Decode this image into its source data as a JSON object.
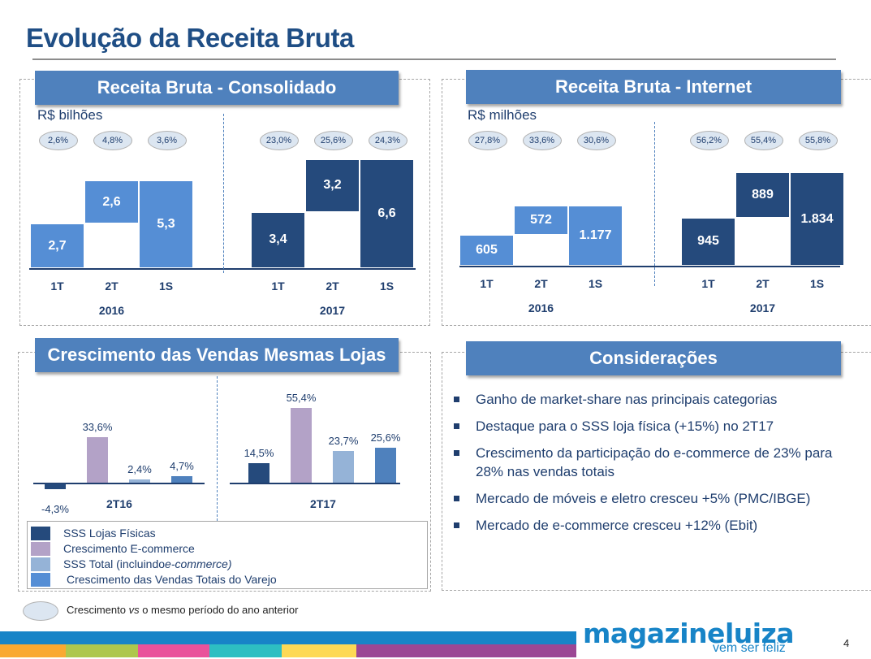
{
  "page": {
    "title": "Evolução da Receita Bruta",
    "page_number": "4",
    "brand": {
      "logo_text": "magazineluiza",
      "tagline": "vem ser feliz",
      "brand_color": "#1784c7"
    },
    "note": {
      "text_before": "Crescimento ",
      "text_italic": "vs",
      "text_after": " o mesmo período do ano anterior"
    }
  },
  "colors": {
    "bar_2016": "#558ed5",
    "bar_2017": "#254a7c",
    "sss_lojas": "#254a7c",
    "ecommerce": "#b3a2c7",
    "sss_total": "#95b3d7",
    "varejo": "#4f81bd",
    "banner": "#4f81bd",
    "stripes": [
      "#f9a932",
      "#aec74d",
      "#e9529b",
      "#2dbfc2",
      "#fdd955",
      "#9b4794"
    ]
  },
  "considerations": {
    "title": "Considerações",
    "bullets": [
      "Ganho de market-share nas principais categorias",
      "Destaque para o SSS loja física (+15%) no 2T17",
      "Crescimento da participação do e-commerce de 23% para 28% nas vendas totais",
      "Mercado de móveis e eletro cresceu +5% (PMC/IBGE)",
      "Mercado de e-commerce cresceu +12% (Ebit)"
    ]
  },
  "chart_data": [
    {
      "type": "bar",
      "title": "Receita Bruta - Consolidado",
      "unit_label": "R$ bilhões",
      "groups": [
        {
          "year": "2016",
          "categories": [
            "1T",
            "2T",
            "1S"
          ],
          "values": [
            2.7,
            2.6,
            5.3
          ],
          "labels": [
            "2,7",
            "2,6",
            "5,3"
          ],
          "growth": [
            "2,6%",
            "4,8%",
            "3,6%"
          ]
        },
        {
          "year": "2017",
          "categories": [
            "1T",
            "2T",
            "1S"
          ],
          "values": [
            3.4,
            3.2,
            6.6
          ],
          "labels": [
            "3,4",
            "3,2",
            "6,6"
          ],
          "growth": [
            "23,0%",
            "25,6%",
            "24,3%"
          ]
        }
      ],
      "style": "waterfall (2T stacked on top of 1T; 1S = total)"
    },
    {
      "type": "bar",
      "title": "Receita Bruta - Internet",
      "unit_label": "R$ milhões",
      "groups": [
        {
          "year": "2016",
          "categories": [
            "1T",
            "2T",
            "1S"
          ],
          "values": [
            605,
            572,
            1177
          ],
          "labels": [
            "605",
            "572",
            "1.177"
          ],
          "growth": [
            "27,8%",
            "33,6%",
            "30,6%"
          ]
        },
        {
          "year": "2017",
          "categories": [
            "1T",
            "2T",
            "1S"
          ],
          "values": [
            945,
            889,
            1834
          ],
          "labels": [
            "945",
            "889",
            "1.834"
          ],
          "growth": [
            "56,2%",
            "55,4%",
            "55,8%"
          ]
        }
      ],
      "style": "waterfall (2T stacked on top of 1T; 1S = total)"
    },
    {
      "type": "bar",
      "title": "Crescimento das Vendas Mesmas Lojas",
      "periods": [
        "2T16",
        "2T17"
      ],
      "series": [
        {
          "name": "SSS Lojas Físicas",
          "values": [
            -4.3,
            14.5
          ],
          "labels": [
            "-4,3%",
            "14,5%"
          ]
        },
        {
          "name": "Crescimento E-commerce",
          "values": [
            33.6,
            55.4
          ],
          "labels": [
            "33,6%",
            "55,4%"
          ]
        },
        {
          "name": "SSS Total (incluindo e-commerce)",
          "values": [
            2.4,
            23.7
          ],
          "labels": [
            "2,4%",
            "23,7%"
          ]
        },
        {
          "name": "Crescimento das Vendas Totais do Varejo",
          "values": [
            4.7,
            25.6
          ],
          "labels": [
            "4,7%",
            "25,6%"
          ]
        }
      ],
      "legend": {
        "position": "bottom",
        "items": [
          {
            "text": "SSS Lojas Físicas"
          },
          {
            "text": "Crescimento E-commerce"
          },
          {
            "text": "SSS Total (incluindo ",
            "italic": "e-commerce)"
          },
          {
            "text": "Crescimento das Vendas Totais do Varejo"
          }
        ]
      },
      "ylabel": "%"
    }
  ]
}
